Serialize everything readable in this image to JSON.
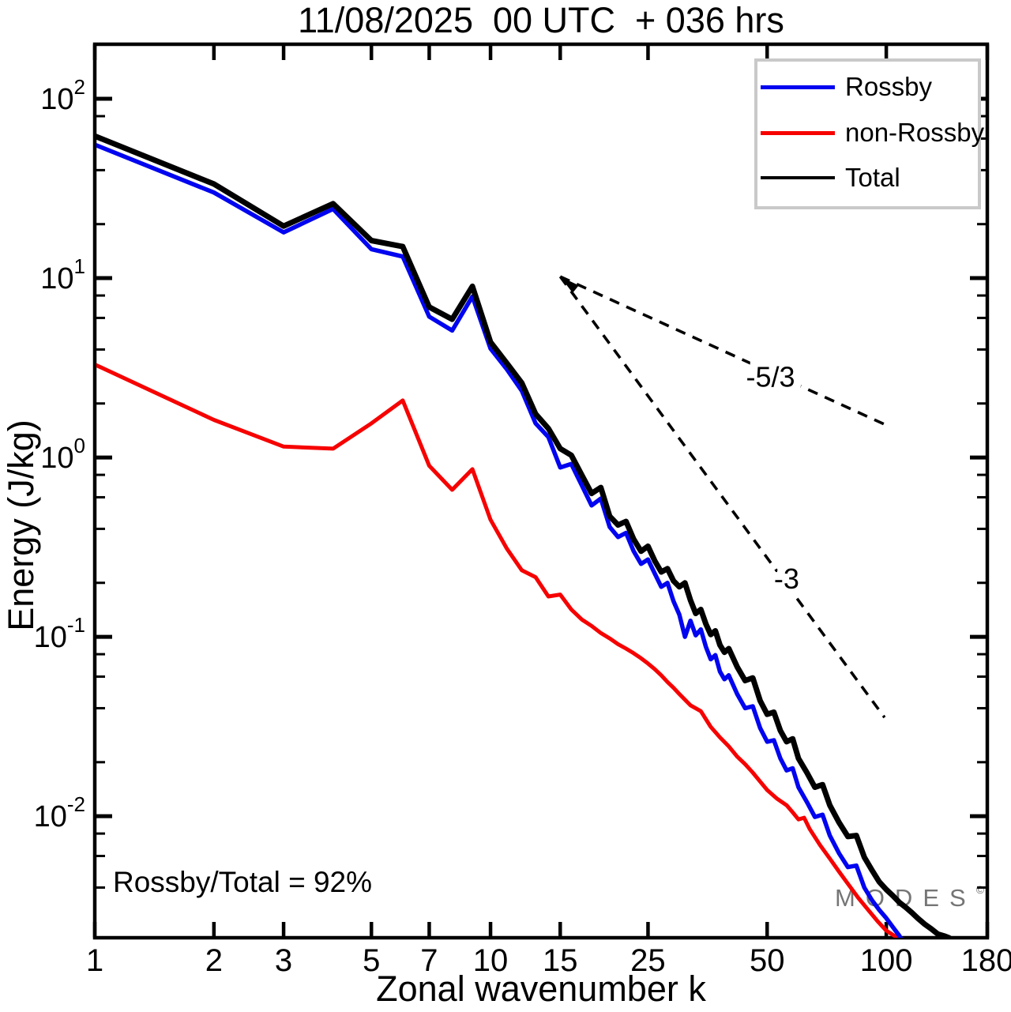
{
  "title": "11/08/2025  00 UTC  + 036 hrs",
  "annotation": {
    "text": "Rossby/Total = 92%"
  },
  "watermark": {
    "text": "MODES",
    "sup": "©"
  },
  "legend": {
    "position": "top-right",
    "items": [
      {
        "label": "Rossby",
        "color": "#0004f0"
      },
      {
        "label": "non-Rossby",
        "color": "#f60000"
      },
      {
        "label": "Total",
        "color": "#000000"
      }
    ]
  },
  "chart_data": {
    "type": "line",
    "title": "11/08/2025  00 UTC  + 036 hrs",
    "xlabel": "Zonal wavenumber k",
    "ylabel": "Energy (J/kg)",
    "x_scale": "log",
    "y_scale": "log",
    "xlim": [
      1,
      180
    ],
    "ylim": [
      0.0021,
      201.4
    ],
    "grid": false,
    "x_ticks": [
      1,
      2,
      3,
      5,
      7,
      10,
      15,
      25,
      50,
      100,
      180
    ],
    "y_major_tick_exponents": [
      2,
      1,
      0,
      -1,
      -2
    ],
    "y_minor_tick_multiples": [
      2,
      4,
      6,
      8
    ],
    "series": [
      {
        "name": "non-Rossby",
        "color": "#f60000",
        "width": 5,
        "points": [
          [
            1,
            3.3
          ],
          [
            2,
            1.62
          ],
          [
            3,
            1.15
          ],
          [
            4,
            1.12
          ],
          [
            5,
            1.55
          ],
          [
            6,
            2.08
          ],
          [
            7,
            0.9
          ],
          [
            8,
            0.66
          ],
          [
            9,
            0.86
          ],
          [
            10,
            0.45
          ],
          [
            11,
            0.31
          ],
          [
            12,
            0.235
          ],
          [
            13,
            0.215
          ],
          [
            14,
            0.168
          ],
          [
            15,
            0.172
          ],
          [
            16,
            0.142
          ],
          [
            17,
            0.125
          ],
          [
            18,
            0.115
          ],
          [
            19,
            0.105
          ],
          [
            20,
            0.098
          ],
          [
            21,
            0.091
          ],
          [
            22,
            0.086
          ],
          [
            23,
            0.081
          ],
          [
            24,
            0.076
          ],
          [
            25,
            0.071
          ],
          [
            26,
            0.066
          ],
          [
            27,
            0.061
          ],
          [
            28,
            0.056
          ],
          [
            29,
            0.052
          ],
          [
            30,
            0.048
          ],
          [
            32,
            0.0415
          ],
          [
            34,
            0.0385
          ],
          [
            36,
            0.0315
          ],
          [
            38,
            0.0275
          ],
          [
            40,
            0.0245
          ],
          [
            42,
            0.0215
          ],
          [
            44,
            0.0195
          ],
          [
            46,
            0.0175
          ],
          [
            48,
            0.0156
          ],
          [
            50,
            0.014
          ],
          [
            53,
            0.0125
          ],
          [
            56,
            0.0115
          ],
          [
            58,
            0.0105
          ],
          [
            60,
            0.0096
          ],
          [
            62,
            0.0098
          ],
          [
            64,
            0.0085
          ],
          [
            68,
            0.0069
          ],
          [
            72,
            0.0058
          ],
          [
            76,
            0.0049
          ],
          [
            80,
            0.0042
          ],
          [
            85,
            0.0035
          ],
          [
            90,
            0.003
          ],
          [
            95,
            0.0026
          ],
          [
            100,
            0.0023
          ],
          [
            105,
            0.00215
          ],
          [
            110,
            0.00205
          ],
          [
            114,
            0.0019
          ]
        ]
      },
      {
        "name": "Rossby",
        "color": "#0004f0",
        "width": 5.5,
        "points": [
          [
            1,
            55.5
          ],
          [
            2,
            30
          ],
          [
            3,
            18
          ],
          [
            4,
            24.3
          ],
          [
            5,
            14.5
          ],
          [
            6,
            13.2
          ],
          [
            7,
            6.1
          ],
          [
            8,
            5.1
          ],
          [
            9,
            7.9
          ],
          [
            10,
            4.05
          ],
          [
            11,
            3.1
          ],
          [
            12,
            2.35
          ],
          [
            13,
            1.55
          ],
          [
            14,
            1.3
          ],
          [
            15,
            0.88
          ],
          [
            16,
            0.92
          ],
          [
            17,
            0.7
          ],
          [
            18,
            0.54
          ],
          [
            19,
            0.59
          ],
          [
            20,
            0.41
          ],
          [
            21,
            0.36
          ],
          [
            22,
            0.38
          ],
          [
            23,
            0.3
          ],
          [
            24,
            0.255
          ],
          [
            25,
            0.27
          ],
          [
            26,
            0.225
          ],
          [
            27,
            0.19
          ],
          [
            28,
            0.2
          ],
          [
            29,
            0.158
          ],
          [
            30,
            0.133
          ],
          [
            31,
            0.1
          ],
          [
            32,
            0.123
          ],
          [
            33,
            0.102
          ],
          [
            34,
            0.11
          ],
          [
            35,
            0.088
          ],
          [
            36,
            0.075
          ],
          [
            37,
            0.079
          ],
          [
            38,
            0.064
          ],
          [
            39,
            0.058
          ],
          [
            40,
            0.061
          ],
          [
            42,
            0.048
          ],
          [
            44,
            0.04
          ],
          [
            46,
            0.041
          ],
          [
            48,
            0.031
          ],
          [
            50,
            0.026
          ],
          [
            52,
            0.0265
          ],
          [
            54,
            0.021
          ],
          [
            56,
            0.018
          ],
          [
            58,
            0.0185
          ],
          [
            60,
            0.0145
          ],
          [
            63,
            0.012
          ],
          [
            66,
            0.0099
          ],
          [
            69,
            0.0102
          ],
          [
            72,
            0.0078
          ],
          [
            76,
            0.0062
          ],
          [
            80,
            0.0052
          ],
          [
            84,
            0.0053
          ],
          [
            88,
            0.004
          ],
          [
            92,
            0.0034
          ],
          [
            96,
            0.003
          ],
          [
            100,
            0.0027
          ],
          [
            104,
            0.0024
          ],
          [
            108,
            0.00215
          ],
          [
            110,
            0.002
          ]
        ]
      },
      {
        "name": "Total",
        "color": "#000000",
        "width": 7,
        "points": [
          [
            1,
            62
          ],
          [
            2,
            33.5
          ],
          [
            3,
            19.5
          ],
          [
            4,
            26
          ],
          [
            5,
            16.2
          ],
          [
            6,
            15
          ],
          [
            7,
            6.9
          ],
          [
            8,
            5.9
          ],
          [
            9,
            9
          ],
          [
            10,
            4.4
          ],
          [
            11,
            3.35
          ],
          [
            12,
            2.6
          ],
          [
            13,
            1.75
          ],
          [
            14,
            1.45
          ],
          [
            15,
            1.12
          ],
          [
            16,
            1.03
          ],
          [
            17,
            0.8
          ],
          [
            18,
            0.63
          ],
          [
            19,
            0.68
          ],
          [
            20,
            0.47
          ],
          [
            21,
            0.42
          ],
          [
            22,
            0.44
          ],
          [
            23,
            0.35
          ],
          [
            24,
            0.3
          ],
          [
            25,
            0.32
          ],
          [
            26,
            0.265
          ],
          [
            27,
            0.23
          ],
          [
            28,
            0.24
          ],
          [
            29,
            0.205
          ],
          [
            30,
            0.19
          ],
          [
            31,
            0.2
          ],
          [
            32,
            0.16
          ],
          [
            33,
            0.135
          ],
          [
            34,
            0.142
          ],
          [
            35,
            0.118
          ],
          [
            36,
            0.103
          ],
          [
            37,
            0.108
          ],
          [
            38,
            0.09
          ],
          [
            39,
            0.082
          ],
          [
            40,
            0.086
          ],
          [
            42,
            0.068
          ],
          [
            44,
            0.057
          ],
          [
            46,
            0.059
          ],
          [
            48,
            0.044
          ],
          [
            50,
            0.037
          ],
          [
            52,
            0.038
          ],
          [
            54,
            0.03
          ],
          [
            56,
            0.026
          ],
          [
            58,
            0.027
          ],
          [
            60,
            0.021
          ],
          [
            63,
            0.0175
          ],
          [
            66,
            0.0145
          ],
          [
            69,
            0.015
          ],
          [
            72,
            0.0115
          ],
          [
            76,
            0.0092
          ],
          [
            80,
            0.0077
          ],
          [
            84,
            0.0078
          ],
          [
            88,
            0.0059
          ],
          [
            92,
            0.005
          ],
          [
            96,
            0.0043
          ],
          [
            100,
            0.0039
          ],
          [
            104,
            0.0036
          ],
          [
            108,
            0.0033
          ],
          [
            112,
            0.0031
          ],
          [
            116,
            0.0029
          ],
          [
            120,
            0.0027
          ],
          [
            125,
            0.0025
          ],
          [
            130,
            0.00235
          ],
          [
            135,
            0.0022
          ],
          [
            140,
            0.00215
          ],
          [
            144,
            0.0021
          ],
          [
            148,
            0.002
          ]
        ]
      }
    ],
    "reference_lines": [
      {
        "label": "-5/3",
        "from": [
          15,
          10.2
        ],
        "to": [
          101,
          1.5
        ],
        "label_at": [
          51,
          2.8
        ]
      },
      {
        "label": "-3",
        "from": [
          15,
          10.2
        ],
        "to": [
          99,
          0.0355
        ],
        "label_at": [
          56,
          0.21
        ]
      }
    ]
  }
}
